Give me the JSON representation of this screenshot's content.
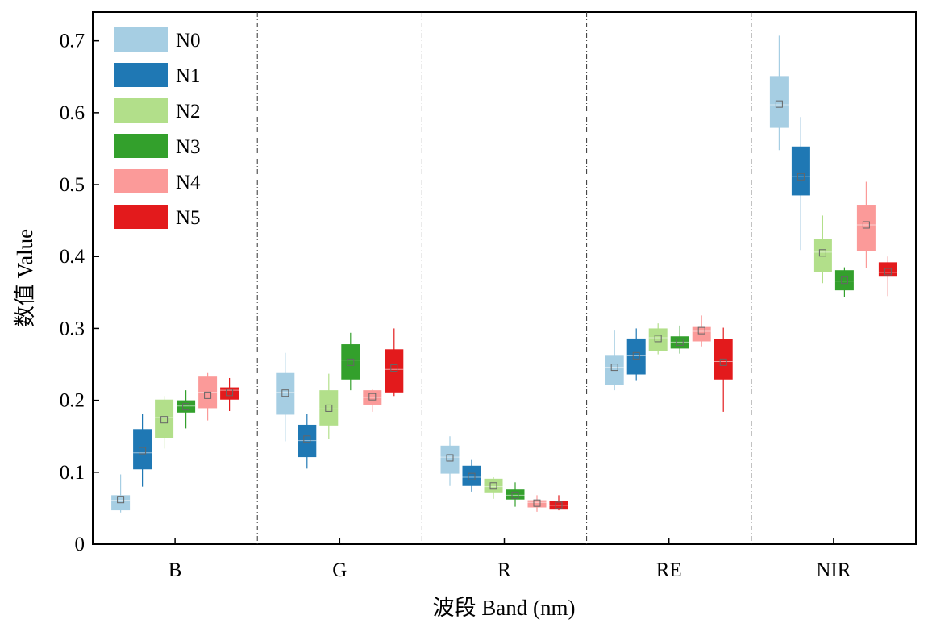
{
  "chart_data": {
    "type": "box",
    "title": "",
    "xlabel": "波段 Band (nm)",
    "ylabel": "数值 Value",
    "ylim": [
      0,
      0.74
    ],
    "yticks": [
      0,
      0.1,
      0.2,
      0.3,
      0.4,
      0.5,
      0.6,
      0.7
    ],
    "ytick_labels": [
      "0",
      "0.1",
      "0.2",
      "0.3",
      "0.4",
      "0.5",
      "0.6",
      "0.7"
    ],
    "categories": [
      "B",
      "G",
      "R",
      "RE",
      "NIR"
    ],
    "legend_position": "top-left",
    "grid": false,
    "series": [
      {
        "name": "N0",
        "color": "#a6cee3",
        "boxes": [
          {
            "whisker_low": 0.044,
            "q1": 0.047,
            "median": 0.061,
            "q3": 0.068,
            "whisker_high": 0.097,
            "mean": 0.062
          },
          {
            "whisker_low": 0.143,
            "q1": 0.18,
            "median": 0.211,
            "q3": 0.238,
            "whisker_high": 0.266,
            "mean": 0.21
          },
          {
            "whisker_low": 0.081,
            "q1": 0.098,
            "median": 0.121,
            "q3": 0.137,
            "whisker_high": 0.15,
            "mean": 0.12
          },
          {
            "whisker_low": 0.214,
            "q1": 0.222,
            "median": 0.246,
            "q3": 0.262,
            "whisker_high": 0.297,
            "mean": 0.246
          },
          {
            "whisker_low": 0.548,
            "q1": 0.579,
            "median": 0.611,
            "q3": 0.651,
            "whisker_high": 0.707,
            "mean": 0.612
          }
        ]
      },
      {
        "name": "N1",
        "color": "#1f78b4",
        "boxes": [
          {
            "whisker_low": 0.08,
            "q1": 0.104,
            "median": 0.127,
            "q3": 0.16,
            "whisker_high": 0.181,
            "mean": 0.13
          },
          {
            "whisker_low": 0.105,
            "q1": 0.121,
            "median": 0.144,
            "q3": 0.166,
            "whisker_high": 0.181,
            "mean": 0.146
          },
          {
            "whisker_low": 0.073,
            "q1": 0.081,
            "median": 0.093,
            "q3": 0.109,
            "whisker_high": 0.117,
            "mean": 0.094
          },
          {
            "whisker_low": 0.227,
            "q1": 0.236,
            "median": 0.262,
            "q3": 0.286,
            "whisker_high": 0.3,
            "mean": 0.262
          },
          {
            "whisker_low": 0.409,
            "q1": 0.485,
            "median": 0.511,
            "q3": 0.553,
            "whisker_high": 0.594,
            "mean": 0.511
          }
        ]
      },
      {
        "name": "N2",
        "color": "#b2df8a",
        "boxes": [
          {
            "whisker_low": 0.133,
            "q1": 0.148,
            "median": 0.176,
            "q3": 0.201,
            "whisker_high": 0.206,
            "mean": 0.173
          },
          {
            "whisker_low": 0.146,
            "q1": 0.165,
            "median": 0.188,
            "q3": 0.214,
            "whisker_high": 0.237,
            "mean": 0.189
          },
          {
            "whisker_low": 0.063,
            "q1": 0.072,
            "median": 0.08,
            "q3": 0.091,
            "whisker_high": 0.093,
            "mean": 0.081
          },
          {
            "whisker_low": 0.264,
            "q1": 0.269,
            "median": 0.287,
            "q3": 0.3,
            "whisker_high": 0.307,
            "mean": 0.286
          },
          {
            "whisker_low": 0.363,
            "q1": 0.378,
            "median": 0.406,
            "q3": 0.424,
            "whisker_high": 0.457,
            "mean": 0.405
          }
        ]
      },
      {
        "name": "N3",
        "color": "#33a02c",
        "boxes": [
          {
            "whisker_low": 0.161,
            "q1": 0.183,
            "median": 0.192,
            "q3": 0.2,
            "whisker_high": 0.214,
            "mean": 0.191
          },
          {
            "whisker_low": 0.214,
            "q1": 0.229,
            "median": 0.256,
            "q3": 0.278,
            "whisker_high": 0.294,
            "mean": 0.253
          },
          {
            "whisker_low": 0.052,
            "q1": 0.062,
            "median": 0.068,
            "q3": 0.076,
            "whisker_high": 0.086,
            "mean": 0.068
          },
          {
            "whisker_low": 0.265,
            "q1": 0.272,
            "median": 0.281,
            "q3": 0.289,
            "whisker_high": 0.304,
            "mean": 0.281
          },
          {
            "whisker_low": 0.344,
            "q1": 0.353,
            "median": 0.366,
            "q3": 0.381,
            "whisker_high": 0.385,
            "mean": 0.367
          }
        ]
      },
      {
        "name": "N4",
        "color": "#fb9a99",
        "boxes": [
          {
            "whisker_low": 0.172,
            "q1": 0.189,
            "median": 0.211,
            "q3": 0.233,
            "whisker_high": 0.238,
            "mean": 0.207
          },
          {
            "whisker_low": 0.184,
            "q1": 0.194,
            "median": 0.204,
            "q3": 0.214,
            "whisker_high": 0.215,
            "mean": 0.205
          },
          {
            "whisker_low": 0.045,
            "q1": 0.051,
            "median": 0.058,
            "q3": 0.061,
            "whisker_high": 0.068,
            "mean": 0.057
          },
          {
            "whisker_low": 0.275,
            "q1": 0.282,
            "median": 0.296,
            "q3": 0.302,
            "whisker_high": 0.318,
            "mean": 0.297
          },
          {
            "whisker_low": 0.384,
            "q1": 0.407,
            "median": 0.444,
            "q3": 0.472,
            "whisker_high": 0.504,
            "mean": 0.444
          }
        ]
      },
      {
        "name": "N5",
        "color": "#e31a1c",
        "boxes": [
          {
            "whisker_low": 0.185,
            "q1": 0.201,
            "median": 0.214,
            "q3": 0.218,
            "whisker_high": 0.231,
            "mean": 0.211
          },
          {
            "whisker_low": 0.206,
            "q1": 0.211,
            "median": 0.243,
            "q3": 0.271,
            "whisker_high": 0.3,
            "mean": 0.245
          },
          {
            "whisker_low": 0.047,
            "q1": 0.048,
            "median": 0.054,
            "q3": 0.06,
            "whisker_high": 0.068,
            "mean": 0.054
          },
          {
            "whisker_low": 0.184,
            "q1": 0.229,
            "median": 0.254,
            "q3": 0.285,
            "whisker_high": 0.301,
            "mean": 0.253
          },
          {
            "whisker_low": 0.345,
            "q1": 0.372,
            "median": 0.378,
            "q3": 0.392,
            "whisker_high": 0.4,
            "mean": 0.379
          }
        ]
      }
    ]
  }
}
